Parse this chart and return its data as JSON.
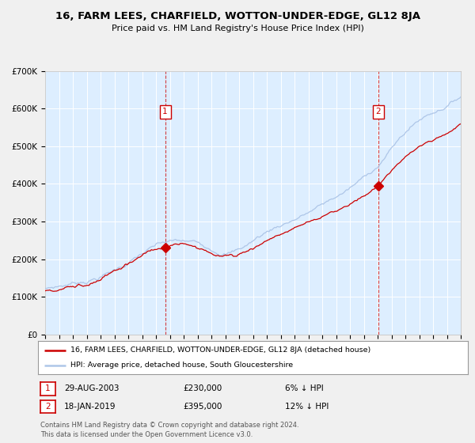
{
  "title": "16, FARM LEES, CHARFIELD, WOTTON-UNDER-EDGE, GL12 8JA",
  "subtitle": "Price paid vs. HM Land Registry's House Price Index (HPI)",
  "x_start_year": 1995,
  "x_end_year": 2025,
  "y_min": 0,
  "y_max": 700000,
  "y_ticks": [
    0,
    100000,
    200000,
    300000,
    400000,
    500000,
    600000,
    700000
  ],
  "y_tick_labels": [
    "£0",
    "£100K",
    "£200K",
    "£300K",
    "£400K",
    "£500K",
    "£600K",
    "£700K"
  ],
  "hpi_color": "#aec6e8",
  "price_color": "#cc0000",
  "fig_bg_color": "#f0f0f0",
  "plot_bg_color": "#ddeeff",
  "grid_color": "#ffffff",
  "annotation1_year": 2003.66,
  "annotation1_price": 230000,
  "annotation2_year": 2019.05,
  "annotation2_price": 395000,
  "legend_label_red": "16, FARM LEES, CHARFIELD, WOTTON-UNDER-EDGE, GL12 8JA (detached house)",
  "legend_label_blue": "HPI: Average price, detached house, South Gloucestershire",
  "footer": "Contains HM Land Registry data © Crown copyright and database right 2024.\nThis data is licensed under the Open Government Licence v3.0.",
  "table_row1": [
    "1",
    "29-AUG-2003",
    "£230,000",
    "6% ↓ HPI"
  ],
  "table_row2": [
    "2",
    "18-JAN-2019",
    "£395,000",
    "12% ↓ HPI"
  ]
}
